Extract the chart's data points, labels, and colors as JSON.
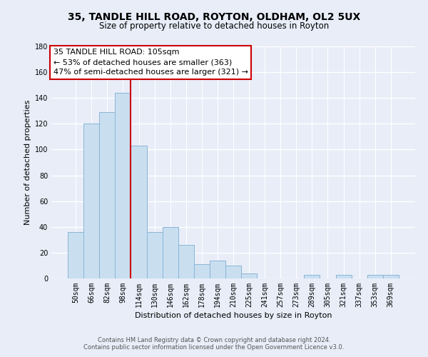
{
  "title": "35, TANDLE HILL ROAD, ROYTON, OLDHAM, OL2 5UX",
  "subtitle": "Size of property relative to detached houses in Royton",
  "xlabel": "Distribution of detached houses by size in Royton",
  "ylabel": "Number of detached properties",
  "bar_labels": [
    "50sqm",
    "66sqm",
    "82sqm",
    "98sqm",
    "114sqm",
    "130sqm",
    "146sqm",
    "162sqm",
    "178sqm",
    "194sqm",
    "210sqm",
    "225sqm",
    "241sqm",
    "257sqm",
    "273sqm",
    "289sqm",
    "305sqm",
    "321sqm",
    "337sqm",
    "353sqm",
    "369sqm"
  ],
  "bar_values": [
    36,
    120,
    129,
    144,
    103,
    36,
    40,
    26,
    11,
    14,
    10,
    4,
    0,
    0,
    0,
    3,
    0,
    3,
    0,
    3,
    3
  ],
  "bar_color": "#c9dff0",
  "bar_edge_color": "#8ab4d4",
  "annotation_title": "35 TANDLE HILL ROAD: 105sqm",
  "annotation_line1": "← 53% of detached houses are smaller (363)",
  "annotation_line2": "47% of semi-detached houses are larger (321) →",
  "annotation_box_facecolor": "#ffffff",
  "annotation_box_edgecolor": "#cc0000",
  "vline_color": "#cc0000",
  "ylim": [
    0,
    180
  ],
  "yticks": [
    0,
    20,
    40,
    60,
    80,
    100,
    120,
    140,
    160,
    180
  ],
  "footer_line1": "Contains HM Land Registry data © Crown copyright and database right 2024.",
  "footer_line2": "Contains public sector information licensed under the Open Government Licence v3.0.",
  "bg_color": "#e8edf8",
  "grid_color": "#ffffff",
  "title_fontsize": 10,
  "subtitle_fontsize": 8.5,
  "axis_label_fontsize": 8,
  "tick_fontsize": 7,
  "annotation_fontsize": 8,
  "footer_fontsize": 6
}
